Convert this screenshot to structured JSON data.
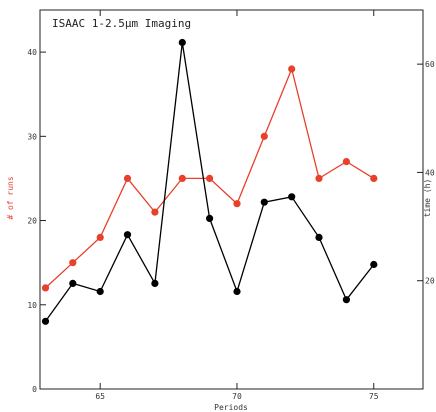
{
  "chart_data": {
    "type": "line",
    "title": "ISAAC 1-2.5µm Imaging",
    "xlabel": "Periods",
    "ylabel_left": "# of runs",
    "ylabel_right": "time (h)",
    "xlim": [
      62.8,
      76.8
    ],
    "ylim_left": [
      0,
      45
    ],
    "ylim_right": [
      0,
      70
    ],
    "x_ticks": [
      65,
      70,
      75
    ],
    "y_ticks_left": [
      0,
      10,
      20,
      30,
      40
    ],
    "y_ticks_right": [
      20,
      40,
      60
    ],
    "x_tick_labels": [
      "65",
      "70",
      "75"
    ],
    "y_tick_labels_left": [
      "0",
      "10",
      "20",
      "30",
      "40"
    ],
    "y_tick_labels_right": [
      "20",
      "40",
      "60"
    ],
    "grid": false,
    "series": [
      {
        "id": "runs",
        "axis": "left",
        "color": "#e8412b",
        "x": [
          63,
          64,
          65,
          66,
          67,
          68,
          69,
          70,
          71,
          72,
          73,
          74,
          75
        ],
        "y": [
          12,
          15,
          18,
          25,
          21,
          25,
          25,
          22,
          30,
          38,
          25,
          27,
          25
        ]
      },
      {
        "id": "time",
        "axis": "right",
        "color": "#000000",
        "x": [
          63,
          64,
          65,
          66,
          67,
          68,
          69,
          70,
          71,
          72,
          73,
          74,
          75
        ],
        "y": [
          12.5,
          19.5,
          18,
          28.5,
          19.5,
          64,
          31.5,
          18,
          34.5,
          35.5,
          28,
          16.5,
          23
        ]
      }
    ]
  }
}
